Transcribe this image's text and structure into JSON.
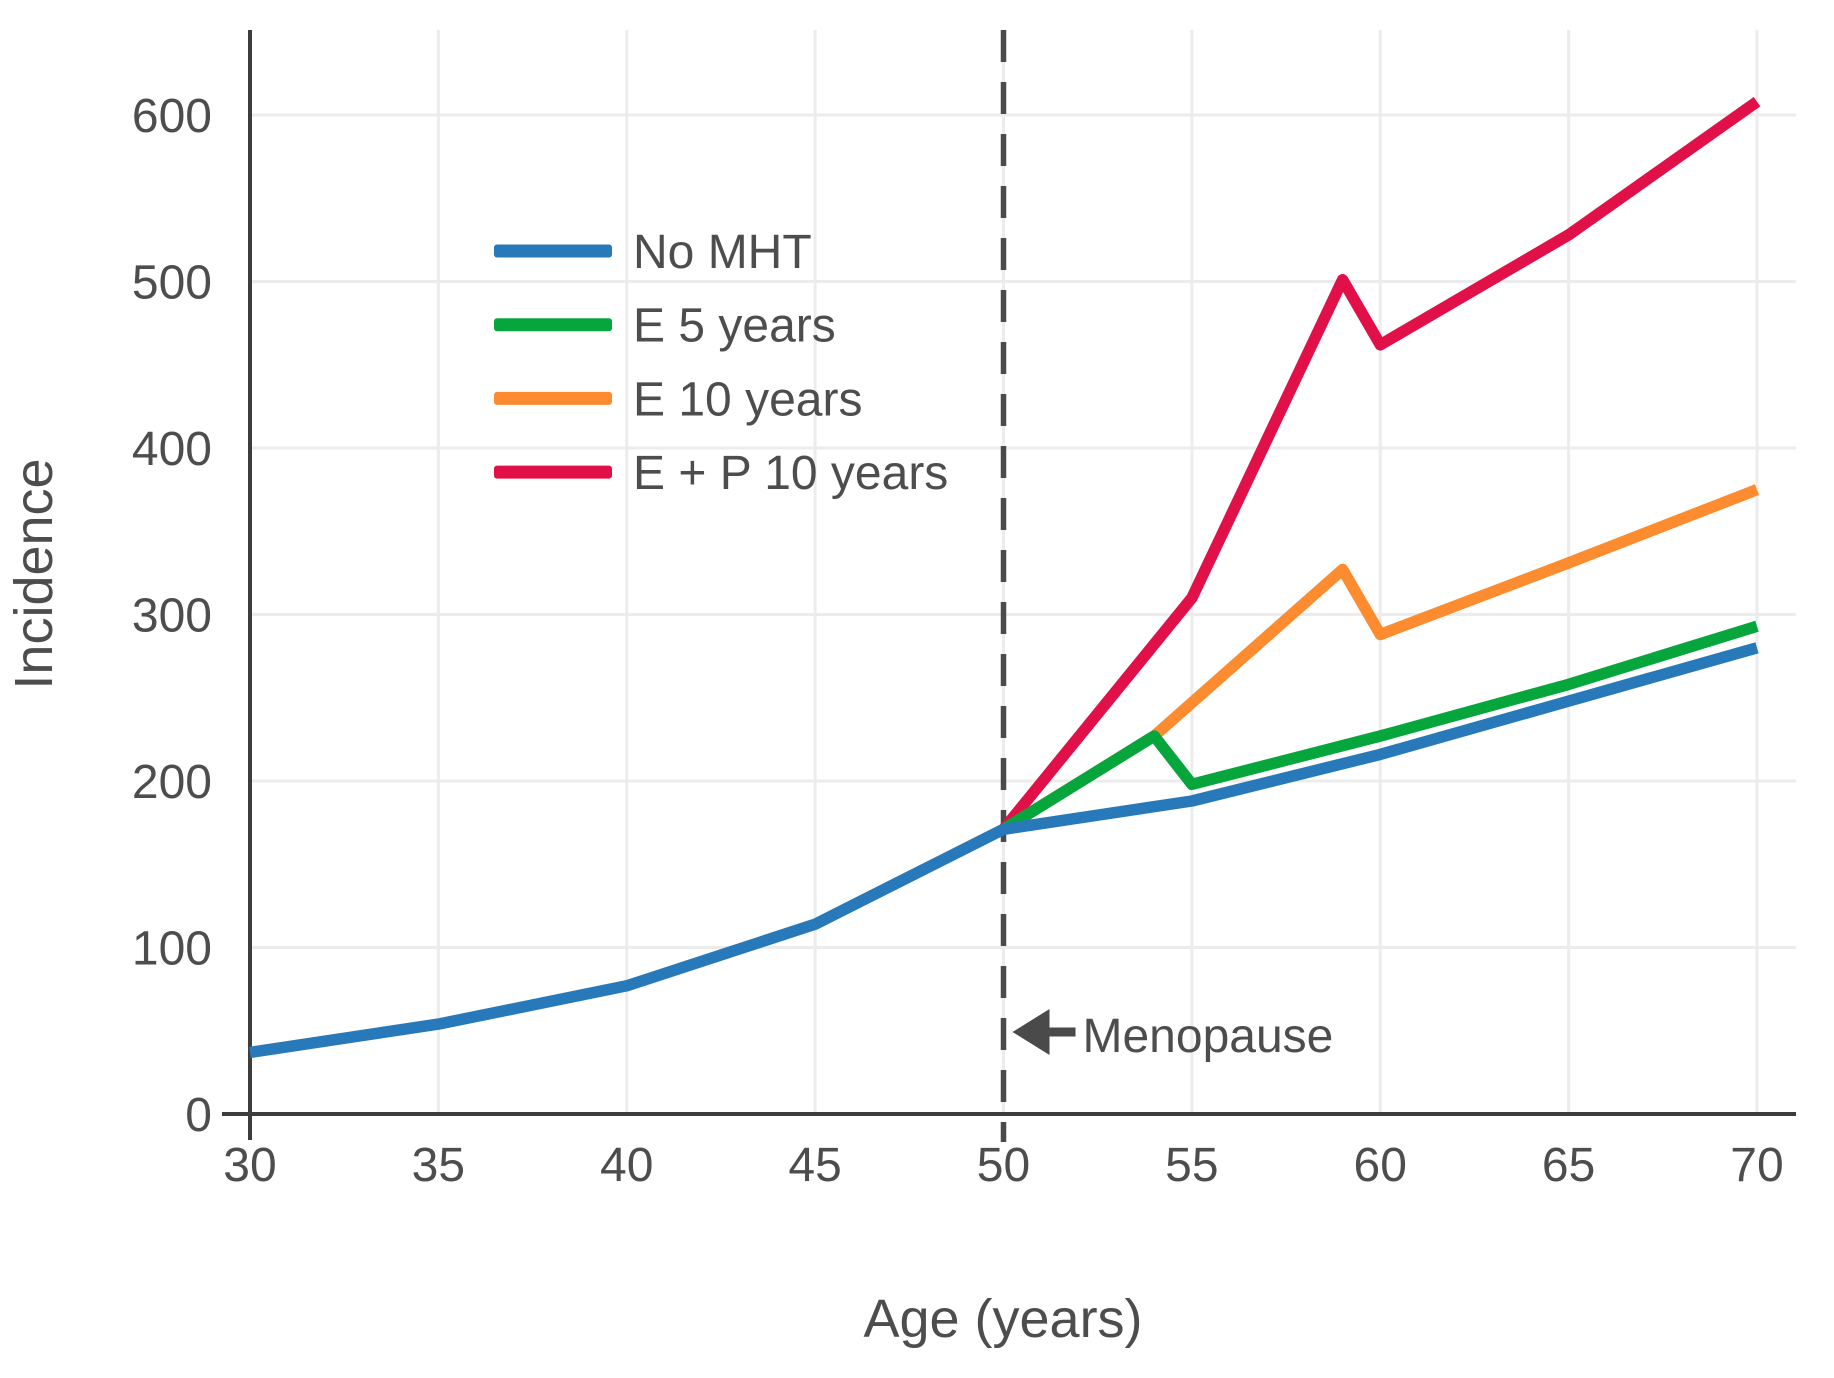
{
  "chart_data": {
    "type": "line",
    "title": "",
    "xlabel": "Age (years)",
    "ylabel": "Incidence",
    "xlim": [
      30,
      71
    ],
    "ylim": [
      0,
      650
    ],
    "grid": true,
    "x_ticks": [
      30,
      35,
      40,
      45,
      50,
      55,
      60,
      65,
      70
    ],
    "y_ticks": [
      0,
      100,
      200,
      300,
      400,
      500,
      600
    ],
    "legend_position": "upper-left-inside",
    "series": [
      {
        "name": "No MHT",
        "color": "#2879b9",
        "points": [
          [
            30,
            37
          ],
          [
            35,
            54
          ],
          [
            40,
            77
          ],
          [
            45,
            114
          ],
          [
            50,
            171
          ],
          [
            55,
            188
          ],
          [
            60,
            216
          ],
          [
            65,
            248
          ],
          [
            70,
            280
          ]
        ]
      },
      {
        "name": "E 5 years",
        "color": "#07a63c",
        "points": [
          [
            50,
            171
          ],
          [
            54,
            227
          ],
          [
            55,
            198
          ],
          [
            60,
            227
          ],
          [
            65,
            258
          ],
          [
            70,
            293
          ]
        ]
      },
      {
        "name": "E 10 years",
        "color": "#fd8c30",
        "points": [
          [
            50,
            171
          ],
          [
            54,
            227
          ],
          [
            59,
            327
          ],
          [
            60,
            288
          ],
          [
            65,
            331
          ],
          [
            70,
            375
          ]
        ]
      },
      {
        "name": "E + P 10 years",
        "color": "#e11049",
        "points": [
          [
            50,
            171
          ],
          [
            55,
            310
          ],
          [
            59,
            501
          ],
          [
            60,
            462
          ],
          [
            65,
            528
          ],
          [
            70,
            608
          ]
        ]
      }
    ],
    "annotation": {
      "label": "Menopause",
      "x": 50
    },
    "style": {
      "background": "#ffffff",
      "grid_color": "#ececec",
      "axis_color": "#3d3d3d",
      "text_color": "#4d4d4d",
      "dashed_line_color": "#4a4a4a"
    }
  }
}
